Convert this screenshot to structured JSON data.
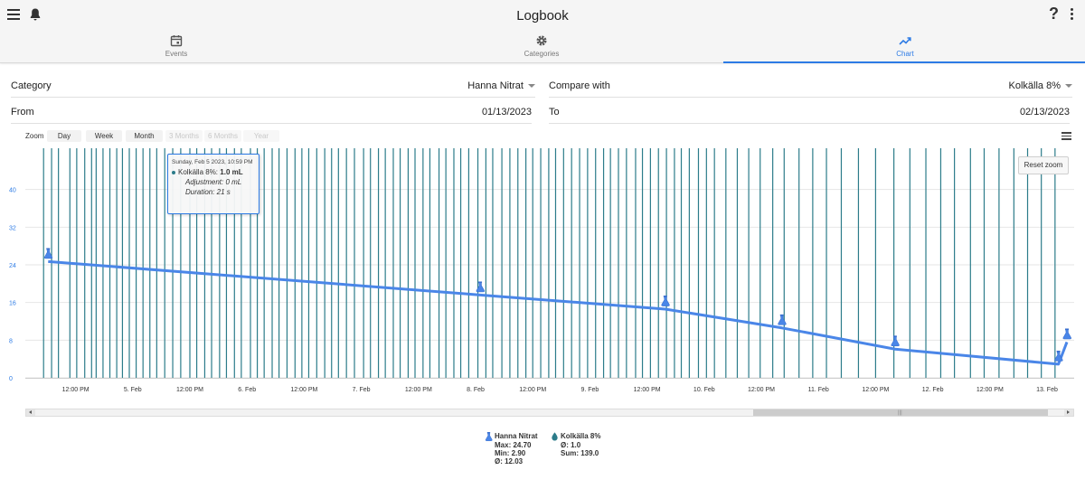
{
  "app": {
    "title": "Logbook"
  },
  "header_icons": {
    "left": [
      "menu-icon",
      "bell-icon"
    ],
    "right": [
      "help-icon",
      "more-vert-icon"
    ],
    "help_glyph": "?"
  },
  "tabs": [
    {
      "label": "Events",
      "icon": "calendar-icon",
      "active": false
    },
    {
      "label": "Categories",
      "icon": "gear-icon",
      "active": false
    },
    {
      "label": "Chart",
      "icon": "trending-up-icon",
      "active": true
    }
  ],
  "form": {
    "category_label": "Category",
    "category_value": "Hanna Nitrat",
    "compare_label": "Compare with",
    "compare_value": "Kolkälla 8%",
    "from_label": "From",
    "from_value": "01/13/2023",
    "to_label": "To",
    "to_value": "02/13/2023"
  },
  "zoom": {
    "label": "Zoom",
    "buttons": [
      {
        "label": "Day",
        "enabled": true
      },
      {
        "label": "Week",
        "enabled": true
      },
      {
        "label": "Month",
        "enabled": true
      },
      {
        "label": "3 Months",
        "enabled": false
      },
      {
        "label": "6 Months",
        "enabled": false
      },
      {
        "label": "Year",
        "enabled": false
      }
    ]
  },
  "reset_zoom_label": "Reset zoom",
  "tooltip": {
    "date": "Sunday, Feb 5 2023, 10:59 PM",
    "series": "Kolkälla 8%:",
    "value": "1.0 mL",
    "adjustment": "Adjustment: 0 mL",
    "duration": "Duration: 21 s"
  },
  "colors": {
    "accent": "#2d7be5",
    "line": "#4a86e8",
    "bars": "#2c7c8a",
    "grid": "#e6e6e6",
    "axis_text": "#2d7be5"
  },
  "chart_data": {
    "type": "line",
    "title": "",
    "ylabel": "",
    "xlabel": "",
    "ylim": [
      0,
      48
    ],
    "yticks": [
      "0",
      "8",
      "16",
      "24",
      "32",
      "40"
    ],
    "x_ticks": [
      "12:00 PM",
      "5. Feb",
      "12:00 PM",
      "6. Feb",
      "12:00 PM",
      "7. Feb",
      "12:00 PM",
      "8. Feb",
      "12:00 PM",
      "9. Feb",
      "12:00 PM",
      "10. Feb",
      "12:00 PM",
      "11. Feb",
      "12:00 PM",
      "12. Feb",
      "12:00 PM",
      "13. Feb"
    ],
    "x_range_days": [
      4.25,
      13.55
    ],
    "series": [
      {
        "name": "Hanna Nitrat",
        "kind": "line",
        "points": [
          {
            "day": 4.26,
            "value": 24.7
          },
          {
            "day": 8.04,
            "value": 17.6
          },
          {
            "day": 9.66,
            "value": 14.6
          },
          {
            "day": 10.68,
            "value": 10.6
          },
          {
            "day": 11.67,
            "value": 6.1
          },
          {
            "day": 13.1,
            "value": 2.9
          },
          {
            "day": 13.72,
            "value": 7.6
          }
        ]
      },
      {
        "name": "Kolkälla 8%",
        "kind": "column",
        "value_each": 1.0,
        "days": [
          4.22,
          4.29,
          4.35,
          4.45,
          4.51,
          4.58,
          4.64,
          4.68,
          4.74,
          4.8,
          4.86,
          4.91,
          4.97,
          5.03,
          5.09,
          5.15,
          5.21,
          5.28,
          5.35,
          5.42,
          5.5,
          5.56,
          5.63,
          5.69,
          5.76,
          5.82,
          5.89,
          5.95,
          6.03,
          6.09,
          6.15,
          6.22,
          6.28,
          6.35,
          6.42,
          6.48,
          6.54,
          6.61,
          6.68,
          6.74,
          6.8,
          6.87,
          6.94,
          7.02,
          7.08,
          7.15,
          7.21,
          7.28,
          7.34,
          7.41,
          7.47,
          7.54,
          7.6,
          7.68,
          7.74,
          7.81,
          7.87,
          7.94,
          8.02,
          8.09,
          8.15,
          8.23,
          8.3,
          8.37,
          8.44,
          8.5,
          8.57,
          8.64,
          8.7,
          8.77,
          8.84,
          8.91,
          8.98,
          9.05,
          9.12,
          9.18,
          9.25,
          9.32,
          9.4,
          9.46,
          9.53,
          9.6,
          9.67,
          9.74,
          9.8,
          9.87,
          9.95,
          10.02,
          10.09,
          10.19,
          10.29,
          10.39,
          10.49,
          10.6,
          10.7,
          10.83,
          10.95,
          11.07,
          11.2,
          11.35,
          11.5,
          11.66,
          11.8,
          11.94,
          12.07,
          12.19,
          12.33,
          12.45,
          12.58,
          12.71,
          12.83,
          12.95,
          13.07,
          13.21,
          13.36,
          13.5
        ]
      }
    ],
    "legend": [
      {
        "name": "Hanna Nitrat",
        "icon": "flask-icon",
        "stats": [
          "Max: 24.70",
          "Min: 2.90",
          "Ø: 12.03"
        ]
      },
      {
        "name": "Kolkälla 8%",
        "icon": "drop-icon",
        "stats": [
          "Ø: 1.0",
          "Sum: 139.0"
        ]
      }
    ]
  }
}
